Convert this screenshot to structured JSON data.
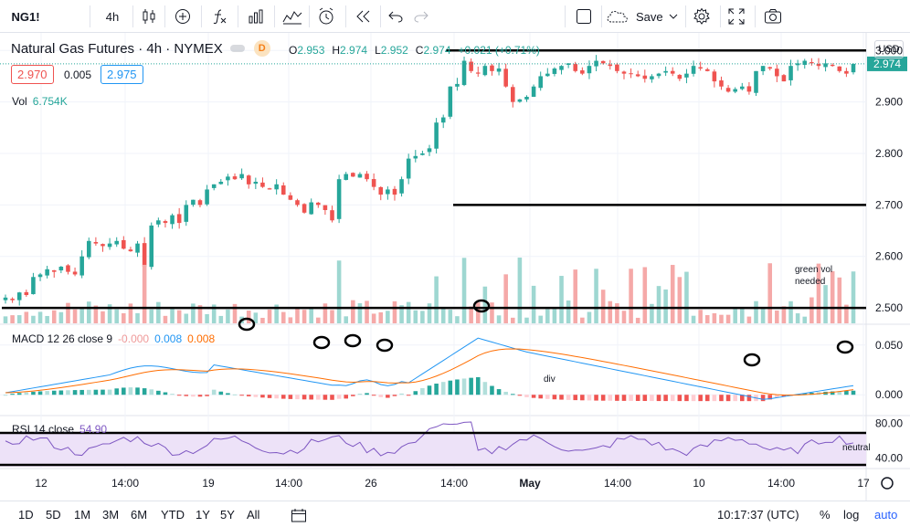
{
  "toolbar": {
    "symbol": "NG1!",
    "interval": "4h",
    "save_label": "Save",
    "icons": [
      "candles-icon",
      "add-compare-icon",
      "indicators-icon",
      "financials-icon",
      "templates-icon",
      "alert-icon",
      "replay-icon",
      "undo-icon",
      "redo-icon",
      "layout-icon",
      "cloud-save-icon",
      "gear-icon",
      "fullscreen-icon",
      "camera-icon"
    ]
  },
  "header": {
    "title": "Natural Gas Futures · 4h · NYMEX",
    "badge": "D",
    "ohlc": {
      "o_label": "O",
      "o": "2.953",
      "h_label": "H",
      "h": "2.974",
      "l_label": "L",
      "l": "2.952",
      "c_label": "C",
      "c": "2.974",
      "change": "+0.021 (+0.71%)"
    },
    "bid": "2.970",
    "spread": "0.005",
    "ask": "2.975",
    "currency": "USD",
    "last_price": "2.974"
  },
  "volume": {
    "label": "Vol",
    "value": "6.754K"
  },
  "macd": {
    "label": "MACD 12 26 close 9",
    "hist": "-0.000",
    "macd": "0.008",
    "signal": "0.008"
  },
  "rsi": {
    "label": "RSI 14 close",
    "value": "54.90"
  },
  "annotations": {
    "green_vol": "green vol",
    "needed": "needed",
    "div": "div",
    "neutral": "neutral"
  },
  "bottombar": {
    "ranges": [
      "1D",
      "5D",
      "1M",
      "3M",
      "6M",
      "YTD",
      "1Y",
      "5Y",
      "All"
    ],
    "time": "10:17:37 (UTC)",
    "percent": "%",
    "log": "log",
    "auto": "auto"
  },
  "colors": {
    "up": "#26a69a",
    "down": "#ef5350",
    "macd_line": "#2196f3",
    "signal_line": "#ff6d00",
    "rsi_line": "#7e57c2",
    "rsi_band": "#ede2f8"
  },
  "chart_data": {
    "type": "candlestick",
    "x_tick_labels": [
      "12",
      "14:00",
      "19",
      "14:00",
      "26",
      "14:00",
      "May",
      "14:00",
      "10",
      "14:00",
      "17"
    ],
    "price_axis": {
      "ticks": [
        "3.000",
        "2.900",
        "2.800",
        "2.700",
        "2.600",
        "2.500"
      ],
      "range": [
        2.47,
        3.02
      ]
    },
    "macd_axis": {
      "ticks": [
        "0.050",
        "0.000"
      ],
      "range": [
        -0.02,
        0.07
      ]
    },
    "rsi_axis": {
      "ticks": [
        "80.00",
        "40.00"
      ],
      "range": [
        28,
        88
      ]
    },
    "horizontal_lines": [
      3.0,
      2.7,
      2.5
    ],
    "closes": [
      2.52,
      2.515,
      2.53,
      2.525,
      2.56,
      2.565,
      2.575,
      2.57,
      2.58,
      2.57,
      2.565,
      2.6,
      2.63,
      2.625,
      2.62,
      2.625,
      2.63,
      2.615,
      2.61,
      2.625,
      2.58,
      2.66,
      2.67,
      2.665,
      2.68,
      2.665,
      2.7,
      2.71,
      2.7,
      2.73,
      2.74,
      2.745,
      2.755,
      2.75,
      2.76,
      2.74,
      2.745,
      2.735,
      2.73,
      2.74,
      2.72,
      2.71,
      2.7,
      2.685,
      2.705,
      2.7,
      2.69,
      2.67,
      2.75,
      2.76,
      2.755,
      2.76,
      2.75,
      2.735,
      2.72,
      2.73,
      2.72,
      2.75,
      2.79,
      2.795,
      2.8,
      2.81,
      2.86,
      2.87,
      2.93,
      2.935,
      2.98,
      2.96,
      2.955,
      2.97,
      2.96,
      2.965,
      2.93,
      2.9,
      2.905,
      2.91,
      2.93,
      2.95,
      2.955,
      2.965,
      2.97,
      2.975,
      2.96,
      2.955,
      2.97,
      2.98,
      2.975,
      2.97,
      2.96,
      2.955,
      2.955,
      2.95,
      2.945,
      2.95,
      2.955,
      2.96,
      2.955,
      2.945,
      2.955,
      2.97,
      2.965,
      2.96,
      2.94,
      2.93,
      2.92,
      2.925,
      2.93,
      2.92,
      2.96,
      2.97,
      2.965,
      2.95,
      2.94,
      2.97,
      2.975,
      2.98,
      2.975,
      2.97,
      2.975,
      2.97,
      2.96,
      2.955,
      2.974
    ],
    "volume_colors_note": "up/down colored volume bars",
    "macd_hist_range": [
      -0.01,
      0.025
    ],
    "rsi_values_range": [
      40,
      83
    ]
  }
}
